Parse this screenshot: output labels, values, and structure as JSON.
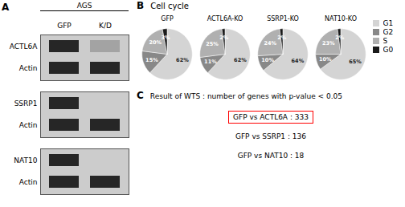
{
  "chart_data": [
    {
      "type": "blot",
      "panel_label": "A",
      "title": "AGS",
      "categories": [
        "GFP",
        "K/D"
      ],
      "series": [
        {
          "name": "ACTL6A",
          "values": [
            1.0,
            0.25
          ]
        },
        {
          "name": "Actin",
          "values": [
            1.0,
            1.0
          ]
        },
        {
          "name": "SSRP1",
          "values": [
            1.0,
            0.0
          ]
        },
        {
          "name": "Actin",
          "values": [
            1.0,
            1.0
          ]
        },
        {
          "name": "NAT10",
          "values": [
            1.0,
            0.0
          ]
        },
        {
          "name": "Actin",
          "values": [
            1.0,
            1.0
          ]
        }
      ]
    },
    {
      "type": "pie",
      "panel_label": "B",
      "title": "Cell cycle",
      "categories": [
        "G1",
        "G2",
        "S",
        "G0"
      ],
      "colors": [
        "#d4d4d4",
        "#888888",
        "#b0b0b0",
        "#1a1a1a"
      ],
      "series": [
        {
          "name": "GFP",
          "values": [
            62,
            15,
            20,
            3
          ],
          "value_labels": [
            "62%",
            "15%",
            "20%",
            "3%"
          ]
        },
        {
          "name": "ACTL6A-KO",
          "values": [
            62,
            11,
            25,
            2
          ],
          "value_labels": [
            "62%",
            "11%",
            "25%",
            "2%"
          ]
        },
        {
          "name": "SSRP1-KO",
          "values": [
            64,
            10,
            24,
            2
          ],
          "value_labels": [
            "64%",
            "10%",
            "24%",
            "2%"
          ]
        },
        {
          "name": "NAT10-KO",
          "values": [
            65,
            10,
            23,
            2
          ],
          "value_labels": [
            "65%",
            "10%",
            "23%",
            "2%"
          ]
        }
      ],
      "data_labels": true,
      "legend": "upper right"
    },
    {
      "type": "text",
      "panel_label": "C",
      "title": "Result of WTS : number of genes with p-value < 0.05",
      "annotations": [
        {
          "text": "GFP vs ACTL6A : 333",
          "boxed": true,
          "color": "red"
        },
        {
          "text": "GFP vs SSRP1 : 136",
          "boxed": false
        },
        {
          "text": "GFP vs NAT10 : 18",
          "boxed": false
        }
      ]
    }
  ]
}
